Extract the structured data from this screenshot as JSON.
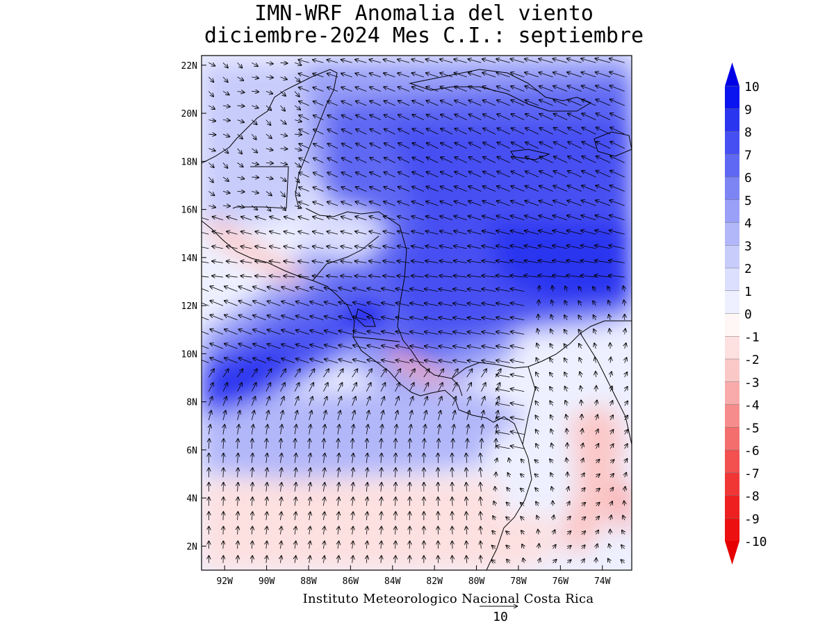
{
  "title_line1": "IMN-WRF Anomalia del viento",
  "title_line2": "diciembre-2024 Mes C.I.: septiembre",
  "footer_credit": "Instituto Meteorologico Nacional Costa Rica",
  "reference_vector_value": "10",
  "map": {
    "lon_range": [
      -93.1,
      -72.6
    ],
    "lat_range": [
      1.0,
      22.4
    ],
    "lon_ticks": [
      "92W",
      "90W",
      "88W",
      "86W",
      "84W",
      "82W",
      "80W",
      "78W",
      "76W",
      "74W"
    ],
    "lat_ticks": [
      "2N",
      "4N",
      "6N",
      "8N",
      "10N",
      "12N",
      "14N",
      "16N",
      "18N",
      "20N",
      "22N"
    ]
  },
  "colorbar": {
    "labels": [
      "10",
      "9",
      "8",
      "7",
      "6",
      "5",
      "4",
      "3",
      "2",
      "1",
      "0",
      "-1",
      "-2",
      "-3",
      "-4",
      "-5",
      "-6",
      "-7",
      "-8",
      "-9",
      "-10"
    ],
    "colors": [
      "#0a14f0",
      "#2a35f0",
      "#4650f2",
      "#5f68f3",
      "#7d85f5",
      "#9aa0f7",
      "#b2b7f9",
      "#c8ccfb",
      "#dcdffd",
      "#eef0ff",
      "#fff6f6",
      "#fde0e0",
      "#fbc8c8",
      "#f9aaaa",
      "#f78c8c",
      "#f56e6e",
      "#f35050",
      "#f13636",
      "#ef2020",
      "#ed1010"
    ],
    "top_color": "#0000e6",
    "bottom_color": "#e60000"
  },
  "colors": {
    "land_outline": "#000000",
    "arrow": "#000000"
  }
}
